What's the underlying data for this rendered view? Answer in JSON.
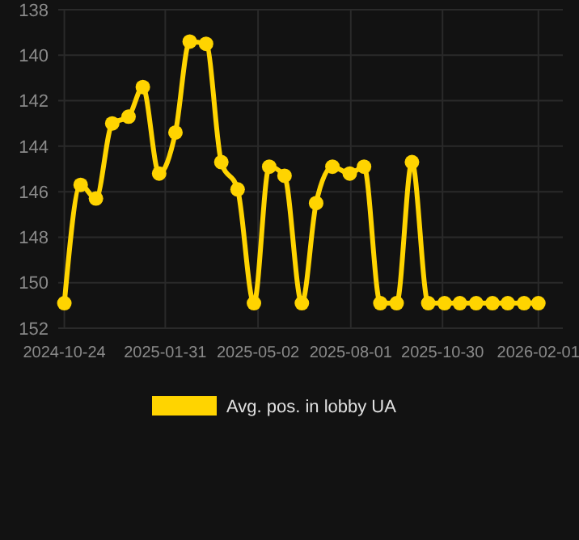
{
  "chart_data": {
    "type": "line",
    "x": [
      "2024-10-24",
      "2024-11-09",
      "2024-11-24",
      "2024-12-10",
      "2024-12-26",
      "2025-01-09",
      "2025-01-25",
      "2025-02-10",
      "2025-02-24",
      "2025-03-12",
      "2025-03-27",
      "2025-04-12",
      "2025-04-28",
      "2025-05-13",
      "2025-05-28",
      "2025-06-14",
      "2025-06-28",
      "2025-07-14",
      "2025-07-31",
      "2025-08-14",
      "2025-08-30",
      "2025-09-15",
      "2025-09-30",
      "2025-10-16",
      "2025-11-01",
      "2025-11-16",
      "2025-12-02",
      "2025-12-18",
      "2026-01-02",
      "2026-01-18",
      "2026-02-01"
    ],
    "series": [
      {
        "name": "Avg. pos. in lobby UA",
        "color": "#ffd400",
        "values": [
          150.9,
          145.7,
          146.3,
          143.0,
          142.7,
          141.4,
          145.2,
          143.4,
          139.4,
          139.5,
          144.7,
          145.9,
          150.9,
          144.9,
          145.3,
          150.9,
          146.5,
          144.9,
          145.2,
          144.9,
          150.9,
          150.9,
          144.7,
          150.9,
          150.9,
          150.9,
          150.9,
          150.9,
          150.9,
          150.9,
          150.9
        ]
      }
    ],
    "xlim": [
      "2024-10-18",
      "2026-02-25"
    ],
    "xticks": [
      "2024-10-24",
      "2025-01-31",
      "2025-05-02",
      "2025-08-01",
      "2025-10-30",
      "2026-02-01"
    ],
    "ylim": [
      152,
      138
    ],
    "yticks": [
      138,
      140,
      142,
      144,
      146,
      148,
      150,
      152
    ],
    "grid": true,
    "legend": "bottom",
    "marker": "circle",
    "line_style": "solid"
  }
}
